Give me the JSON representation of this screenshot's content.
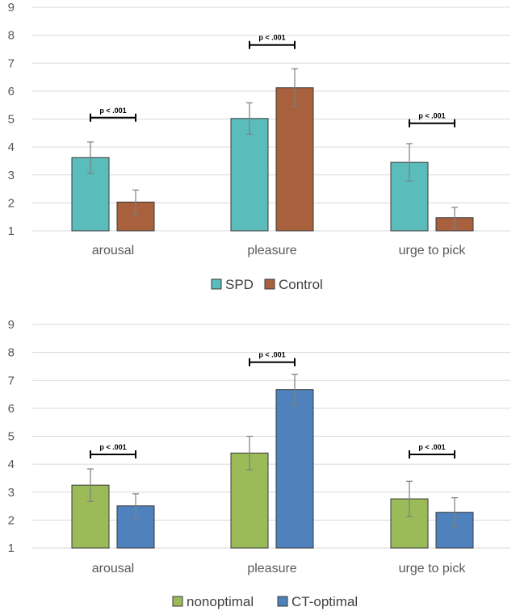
{
  "chart_data": [
    {
      "type": "bar",
      "categories": [
        "arousal",
        "pleasure",
        "urge to pick"
      ],
      "series": [
        {
          "name": "SPD",
          "color": "#5bbcbc",
          "values": [
            3.62,
            5.02,
            3.45
          ],
          "errors": [
            0.56,
            0.56,
            0.67
          ]
        },
        {
          "name": "Control",
          "color": "#a8603d",
          "values": [
            2.03,
            6.12,
            1.47
          ],
          "errors": [
            0.43,
            0.68,
            0.37
          ]
        }
      ],
      "ylim": [
        1,
        9
      ],
      "yticks": [
        "1",
        "2",
        "3",
        "4",
        "5",
        "6",
        "7",
        "8",
        "9"
      ],
      "annotations": [
        {
          "category": "arousal",
          "text": "p < .001",
          "y": 5.05
        },
        {
          "category": "pleasure",
          "text": "p < .001",
          "y": 7.65
        },
        {
          "category": "urge to pick",
          "text": "p < .001",
          "y": 4.85
        }
      ],
      "legend": "bottom-center",
      "title": "",
      "xlabel": "",
      "ylabel": ""
    },
    {
      "type": "bar",
      "categories": [
        "arousal",
        "pleasure",
        "urge to pick"
      ],
      "series": [
        {
          "name": "nonoptimal",
          "color": "#9bbb59",
          "values": [
            3.25,
            4.4,
            2.76
          ],
          "errors": [
            0.58,
            0.6,
            0.63
          ]
        },
        {
          "name": "CT-optimal",
          "color": "#4f81bd",
          "values": [
            2.51,
            6.67,
            2.28
          ],
          "errors": [
            0.43,
            0.55,
            0.52
          ]
        }
      ],
      "ylim": [
        1,
        9
      ],
      "yticks": [
        "1",
        "2",
        "3",
        "4",
        "5",
        "6",
        "7",
        "8",
        "9"
      ],
      "annotations": [
        {
          "category": "arousal",
          "text": "p < .001",
          "y": 4.35
        },
        {
          "category": "pleasure",
          "text": "p < .001",
          "y": 7.65
        },
        {
          "category": "urge to pick",
          "text": "p < .001",
          "y": 4.35
        }
      ],
      "legend": "bottom-center",
      "title": "",
      "xlabel": "",
      "ylabel": ""
    }
  ]
}
